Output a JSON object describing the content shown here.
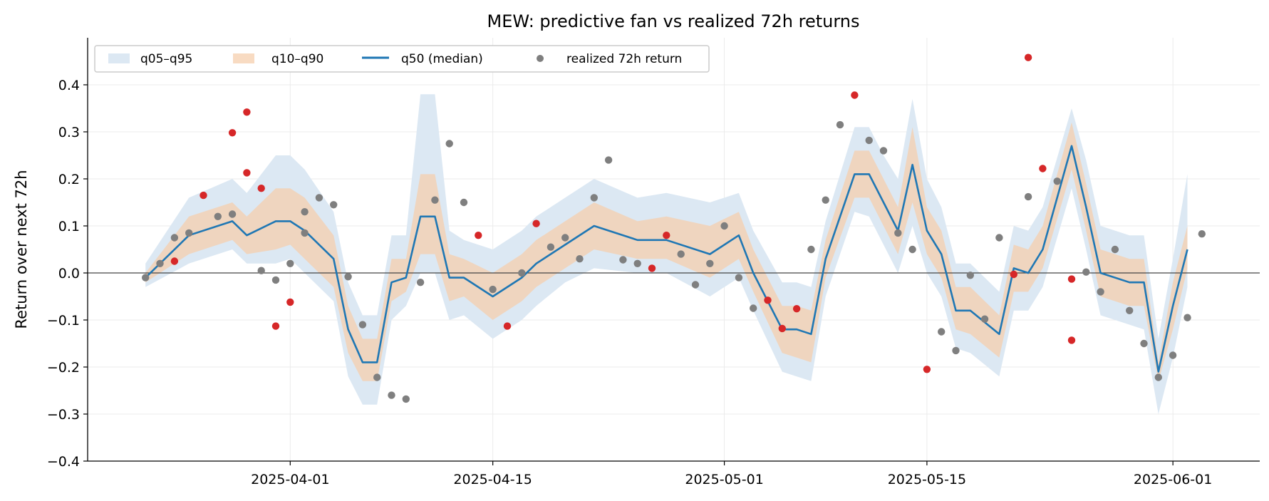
{
  "chart_data": {
    "type": "line",
    "title": "MEW: predictive fan vs realized 72h returns",
    "xlabel": "",
    "ylabel": "Return over next 72h",
    "ylim": [
      -0.4,
      0.5
    ],
    "xlim": [
      "2025-03-18",
      "2025-06-07"
    ],
    "x_tick_labels": [
      "2025-04-01",
      "2025-04-15",
      "2025-05-01",
      "2025-05-15",
      "2025-06-01"
    ],
    "y_ticks": [
      -0.4,
      -0.3,
      -0.2,
      -0.1,
      0.0,
      0.1,
      0.2,
      0.3,
      0.4
    ],
    "y_tick_labels": [
      "−0.4",
      "−0.3",
      "−0.2",
      "−0.1",
      "0.0",
      "0.1",
      "0.2",
      "0.3",
      "0.4"
    ],
    "grid": true,
    "zero_line": true,
    "legend_position": "top-left",
    "legend": [
      {
        "key": "band95",
        "label": "q05–q95"
      },
      {
        "key": "band90",
        "label": "q10–q90"
      },
      {
        "key": "median",
        "label": "q50 (median)"
      },
      {
        "key": "realized",
        "label": "realized 72h return"
      }
    ],
    "colors": {
      "band95": "#dce8f3",
      "band90": "#f5cfad",
      "median": "#1f77b4",
      "realized_inside": "#7f7f7f",
      "realized_outside": "#d62728",
      "axis": "#000000",
      "zero_line": "#444444"
    },
    "fan": {
      "x": [
        "2025-03-22",
        "2025-03-25",
        "2025-03-28",
        "2025-03-29",
        "2025-03-31",
        "2025-04-01",
        "2025-04-02",
        "2025-04-04",
        "2025-04-05",
        "2025-04-06",
        "2025-04-07",
        "2025-04-08",
        "2025-04-09",
        "2025-04-10",
        "2025-04-11",
        "2025-04-12",
        "2025-04-13",
        "2025-04-15",
        "2025-04-17",
        "2025-04-18",
        "2025-04-20",
        "2025-04-22",
        "2025-04-25",
        "2025-04-27",
        "2025-04-30",
        "2025-05-02",
        "2025-05-03",
        "2025-05-05",
        "2025-05-06",
        "2025-05-07",
        "2025-05-08",
        "2025-05-10",
        "2025-05-11",
        "2025-05-12",
        "2025-05-13",
        "2025-05-14",
        "2025-05-15",
        "2025-05-16",
        "2025-05-17",
        "2025-05-18",
        "2025-05-20",
        "2025-05-21",
        "2025-05-22",
        "2025-05-23",
        "2025-05-25",
        "2025-05-26",
        "2025-05-27",
        "2025-05-29",
        "2025-05-30",
        "2025-05-31",
        "2025-06-01",
        "2025-06-02"
      ],
      "q50": [
        -0.01,
        0.08,
        0.11,
        0.08,
        0.11,
        0.11,
        0.09,
        0.03,
        -0.12,
        -0.19,
        -0.19,
        -0.02,
        -0.01,
        0.12,
        0.12,
        -0.01,
        -0.01,
        -0.05,
        -0.01,
        0.02,
        0.06,
        0.1,
        0.07,
        0.07,
        0.04,
        0.08,
        0.0,
        -0.12,
        -0.12,
        -0.13,
        0.03,
        0.21,
        0.21,
        0.15,
        0.09,
        0.23,
        0.09,
        0.04,
        -0.08,
        -0.08,
        -0.13,
        0.01,
        0.0,
        0.05,
        0.27,
        0.14,
        0.0,
        -0.02,
        -0.02,
        -0.21,
        -0.07,
        0.05
      ],
      "q10": [
        -0.02,
        0.04,
        0.07,
        0.04,
        0.05,
        0.06,
        0.03,
        -0.03,
        -0.17,
        -0.23,
        -0.23,
        -0.06,
        -0.04,
        0.04,
        0.04,
        -0.06,
        -0.05,
        -0.1,
        -0.06,
        -0.03,
        0.01,
        0.05,
        0.03,
        0.03,
        -0.01,
        0.03,
        -0.04,
        -0.17,
        -0.18,
        -0.19,
        -0.01,
        0.16,
        0.16,
        0.1,
        0.04,
        0.15,
        0.04,
        -0.01,
        -0.12,
        -0.13,
        -0.18,
        -0.04,
        -0.04,
        0.01,
        0.22,
        0.09,
        -0.05,
        -0.07,
        -0.07,
        -0.23,
        -0.12,
        0.01
      ],
      "q90": [
        0.0,
        0.12,
        0.15,
        0.12,
        0.18,
        0.18,
        0.16,
        0.08,
        -0.07,
        -0.14,
        -0.14,
        0.03,
        0.03,
        0.21,
        0.21,
        0.04,
        0.03,
        0.0,
        0.04,
        0.07,
        0.11,
        0.15,
        0.11,
        0.12,
        0.1,
        0.13,
        0.05,
        -0.07,
        -0.07,
        -0.08,
        0.07,
        0.26,
        0.26,
        0.2,
        0.14,
        0.31,
        0.14,
        0.09,
        -0.03,
        -0.03,
        -0.09,
        0.06,
        0.05,
        0.1,
        0.32,
        0.19,
        0.05,
        0.03,
        0.03,
        -0.19,
        -0.02,
        0.1
      ],
      "q05": [
        -0.03,
        0.02,
        0.05,
        0.02,
        0.02,
        0.03,
        0.0,
        -0.06,
        -0.22,
        -0.28,
        -0.28,
        -0.1,
        -0.07,
        0.0,
        0.0,
        -0.1,
        -0.09,
        -0.14,
        -0.1,
        -0.07,
        -0.02,
        0.01,
        0.0,
        0.0,
        -0.05,
        -0.01,
        -0.08,
        -0.21,
        -0.22,
        -0.23,
        -0.05,
        0.13,
        0.12,
        0.06,
        0.0,
        0.1,
        0.0,
        -0.05,
        -0.16,
        -0.17,
        -0.22,
        -0.08,
        -0.08,
        -0.03,
        0.18,
        0.05,
        -0.09,
        -0.11,
        -0.12,
        -0.3,
        -0.18,
        -0.03
      ],
      "q95": [
        0.02,
        0.16,
        0.2,
        0.17,
        0.25,
        0.25,
        0.22,
        0.13,
        -0.02,
        -0.09,
        -0.09,
        0.08,
        0.08,
        0.38,
        0.38,
        0.09,
        0.07,
        0.05,
        0.09,
        0.12,
        0.16,
        0.2,
        0.16,
        0.17,
        0.15,
        0.17,
        0.09,
        -0.02,
        -0.02,
        -0.03,
        0.11,
        0.31,
        0.31,
        0.25,
        0.2,
        0.37,
        0.2,
        0.14,
        0.02,
        0.02,
        -0.04,
        0.1,
        0.09,
        0.14,
        0.35,
        0.24,
        0.1,
        0.08,
        0.08,
        -0.14,
        0.03,
        0.21
      ]
    },
    "realized": [
      {
        "x": "2025-03-22",
        "y": -0.01,
        "outside": false
      },
      {
        "x": "2025-03-23",
        "y": 0.02,
        "outside": false
      },
      {
        "x": "2025-03-24",
        "y": 0.075,
        "outside": false
      },
      {
        "x": "2025-03-24",
        "y": 0.025,
        "outside": true
      },
      {
        "x": "2025-03-25",
        "y": 0.085,
        "outside": false
      },
      {
        "x": "2025-03-26",
        "y": 0.165,
        "outside": true
      },
      {
        "x": "2025-03-27",
        "y": 0.12,
        "outside": false
      },
      {
        "x": "2025-03-28",
        "y": 0.125,
        "outside": false
      },
      {
        "x": "2025-03-28",
        "y": 0.298,
        "outside": true
      },
      {
        "x": "2025-03-29",
        "y": 0.342,
        "outside": true
      },
      {
        "x": "2025-03-29",
        "y": 0.213,
        "outside": true
      },
      {
        "x": "2025-03-30",
        "y": 0.18,
        "outside": true
      },
      {
        "x": "2025-03-30",
        "y": 0.005,
        "outside": false
      },
      {
        "x": "2025-03-31",
        "y": -0.015,
        "outside": false
      },
      {
        "x": "2025-03-31",
        "y": -0.113,
        "outside": true
      },
      {
        "x": "2025-04-01",
        "y": -0.062,
        "outside": true
      },
      {
        "x": "2025-04-01",
        "y": 0.02,
        "outside": false
      },
      {
        "x": "2025-04-02",
        "y": 0.085,
        "outside": false
      },
      {
        "x": "2025-04-02",
        "y": 0.13,
        "outside": false
      },
      {
        "x": "2025-04-03",
        "y": 0.16,
        "outside": false
      },
      {
        "x": "2025-04-04",
        "y": 0.145,
        "outside": false
      },
      {
        "x": "2025-04-05",
        "y": -0.008,
        "outside": false
      },
      {
        "x": "2025-04-06",
        "y": -0.11,
        "outside": false
      },
      {
        "x": "2025-04-07",
        "y": -0.222,
        "outside": false
      },
      {
        "x": "2025-04-08",
        "y": -0.26,
        "outside": false
      },
      {
        "x": "2025-04-09",
        "y": -0.268,
        "outside": false
      },
      {
        "x": "2025-04-10",
        "y": -0.02,
        "outside": false
      },
      {
        "x": "2025-04-11",
        "y": 0.155,
        "outside": false
      },
      {
        "x": "2025-04-12",
        "y": 0.275,
        "outside": false
      },
      {
        "x": "2025-04-13",
        "y": 0.15,
        "outside": false
      },
      {
        "x": "2025-04-14",
        "y": 0.08,
        "outside": true
      },
      {
        "x": "2025-04-15",
        "y": -0.035,
        "outside": false
      },
      {
        "x": "2025-04-16",
        "y": -0.113,
        "outside": true
      },
      {
        "x": "2025-04-17",
        "y": 0.0,
        "outside": false
      },
      {
        "x": "2025-04-18",
        "y": 0.105,
        "outside": true
      },
      {
        "x": "2025-04-19",
        "y": 0.055,
        "outside": false
      },
      {
        "x": "2025-04-20",
        "y": 0.075,
        "outside": false
      },
      {
        "x": "2025-04-21",
        "y": 0.03,
        "outside": false
      },
      {
        "x": "2025-04-22",
        "y": 0.16,
        "outside": false
      },
      {
        "x": "2025-04-23",
        "y": 0.24,
        "outside": false
      },
      {
        "x": "2025-04-24",
        "y": 0.028,
        "outside": false
      },
      {
        "x": "2025-04-25",
        "y": 0.02,
        "outside": false
      },
      {
        "x": "2025-04-26",
        "y": 0.01,
        "outside": true
      },
      {
        "x": "2025-04-27",
        "y": 0.08,
        "outside": true
      },
      {
        "x": "2025-04-28",
        "y": 0.04,
        "outside": false
      },
      {
        "x": "2025-04-29",
        "y": -0.025,
        "outside": false
      },
      {
        "x": "2025-04-30",
        "y": 0.02,
        "outside": false
      },
      {
        "x": "2025-05-01",
        "y": 0.1,
        "outside": false
      },
      {
        "x": "2025-05-02",
        "y": -0.01,
        "outside": false
      },
      {
        "x": "2025-05-03",
        "y": -0.075,
        "outside": false
      },
      {
        "x": "2025-05-04",
        "y": -0.058,
        "outside": true
      },
      {
        "x": "2025-05-05",
        "y": -0.118,
        "outside": true
      },
      {
        "x": "2025-05-06",
        "y": -0.076,
        "outside": true
      },
      {
        "x": "2025-05-07",
        "y": 0.05,
        "outside": false
      },
      {
        "x": "2025-05-08",
        "y": 0.155,
        "outside": false
      },
      {
        "x": "2025-05-09",
        "y": 0.315,
        "outside": false
      },
      {
        "x": "2025-05-10",
        "y": 0.378,
        "outside": true
      },
      {
        "x": "2025-05-11",
        "y": 0.282,
        "outside": false
      },
      {
        "x": "2025-05-12",
        "y": 0.26,
        "outside": false
      },
      {
        "x": "2025-05-13",
        "y": 0.085,
        "outside": false
      },
      {
        "x": "2025-05-14",
        "y": 0.05,
        "outside": false
      },
      {
        "x": "2025-05-15",
        "y": -0.205,
        "outside": true
      },
      {
        "x": "2025-05-16",
        "y": -0.125,
        "outside": false
      },
      {
        "x": "2025-05-17",
        "y": -0.165,
        "outside": false
      },
      {
        "x": "2025-05-18",
        "y": -0.005,
        "outside": false
      },
      {
        "x": "2025-05-19",
        "y": -0.098,
        "outside": false
      },
      {
        "x": "2025-05-20",
        "y": 0.075,
        "outside": false
      },
      {
        "x": "2025-05-21",
        "y": -0.003,
        "outside": true
      },
      {
        "x": "2025-05-22",
        "y": 0.162,
        "outside": false
      },
      {
        "x": "2025-05-22",
        "y": 0.458,
        "outside": true
      },
      {
        "x": "2025-05-23",
        "y": 0.222,
        "outside": true
      },
      {
        "x": "2025-05-24",
        "y": 0.195,
        "outside": false
      },
      {
        "x": "2025-05-25",
        "y": -0.013,
        "outside": true
      },
      {
        "x": "2025-05-25",
        "y": -0.143,
        "outside": true
      },
      {
        "x": "2025-05-26",
        "y": 0.002,
        "outside": false
      },
      {
        "x": "2025-05-27",
        "y": -0.04,
        "outside": false
      },
      {
        "x": "2025-05-28",
        "y": 0.05,
        "outside": false
      },
      {
        "x": "2025-05-29",
        "y": -0.08,
        "outside": false
      },
      {
        "x": "2025-05-30",
        "y": -0.15,
        "outside": false
      },
      {
        "x": "2025-05-31",
        "y": -0.222,
        "outside": false
      },
      {
        "x": "2025-06-01",
        "y": -0.175,
        "outside": false
      },
      {
        "x": "2025-06-02",
        "y": -0.095,
        "outside": false
      },
      {
        "x": "2025-06-03",
        "y": 0.083,
        "outside": false
      }
    ]
  }
}
